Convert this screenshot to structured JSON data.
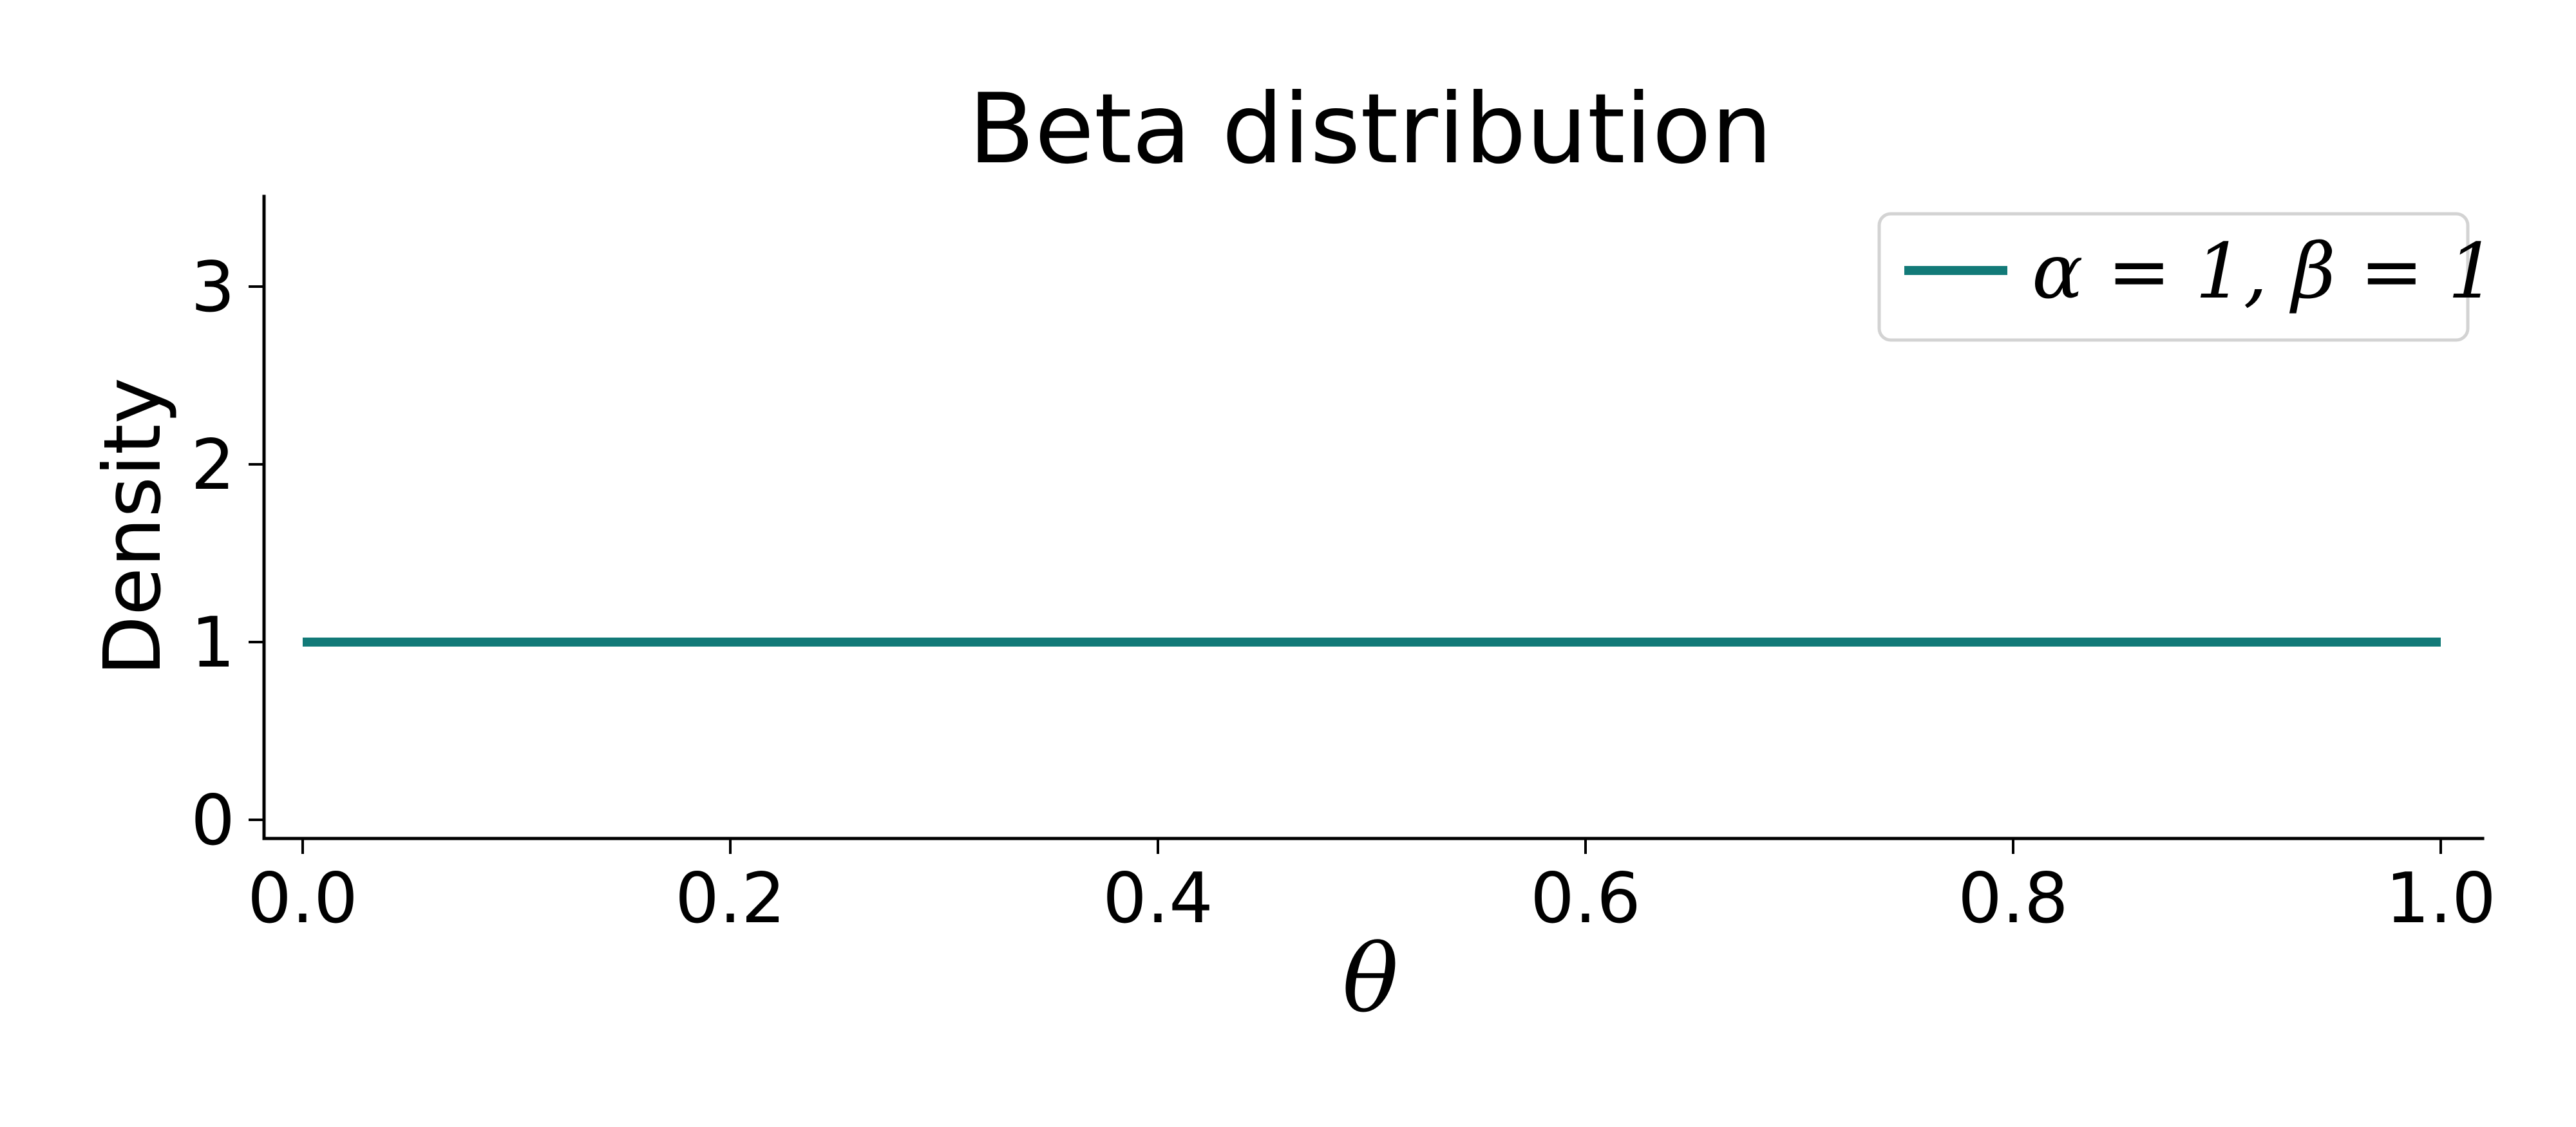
{
  "chart_data": {
    "type": "line",
    "title": "Beta distribution",
    "xlabel": "θ",
    "ylabel": "Density",
    "xlim": [
      -0.02,
      1.02
    ],
    "ylim": [
      -0.1,
      3.5
    ],
    "xticks": [
      0.0,
      0.2,
      0.4,
      0.6,
      0.8,
      1.0
    ],
    "xtick_labels": [
      "0.0",
      "0.2",
      "0.4",
      "0.6",
      "0.8",
      "1.0"
    ],
    "yticks": [
      0,
      1,
      2,
      3
    ],
    "ytick_labels": [
      "0",
      "1",
      "2",
      "3"
    ],
    "grid": false,
    "legend_position": "top-right",
    "series": [
      {
        "name": "α = 1, β = 1",
        "color": "#127a78",
        "x": [
          0.0,
          1.0
        ],
        "y": [
          1.0,
          1.0
        ]
      }
    ]
  }
}
